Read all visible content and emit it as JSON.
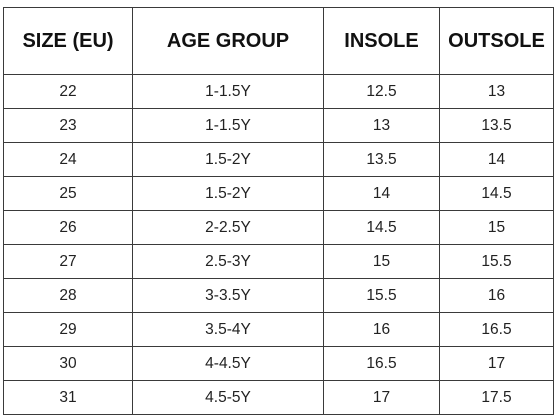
{
  "table": {
    "headers": [
      "SIZE (EU)",
      "AGE GROUP",
      "INSOLE",
      "OUTSOLE"
    ],
    "rows": [
      [
        "22",
        "1-1.5Y",
        "12.5",
        "13"
      ],
      [
        "23",
        "1-1.5Y",
        "13",
        "13.5"
      ],
      [
        "24",
        "1.5-2Y",
        "13.5",
        "14"
      ],
      [
        "25",
        "1.5-2Y",
        "14",
        "14.5"
      ],
      [
        "26",
        "2-2.5Y",
        "14.5",
        "15"
      ],
      [
        "27",
        "2.5-3Y",
        "15",
        "15.5"
      ],
      [
        "28",
        "3-3.5Y",
        "15.5",
        "16"
      ],
      [
        "29",
        "3.5-4Y",
        "16",
        "16.5"
      ],
      [
        "30",
        "4-4.5Y",
        "16.5",
        "17"
      ],
      [
        "31",
        "4.5-5Y",
        "17",
        "17.5"
      ]
    ]
  }
}
